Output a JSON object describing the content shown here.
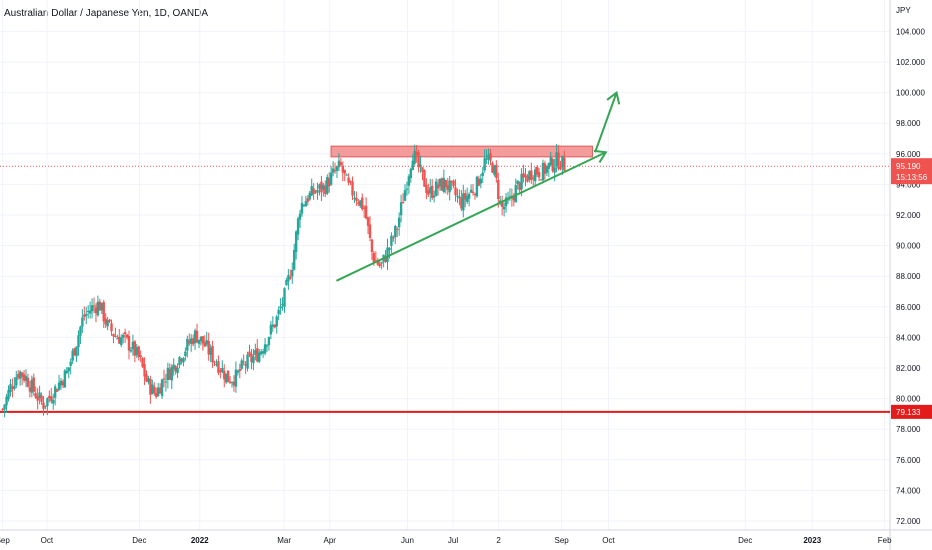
{
  "chart_data": {
    "type": "candlestick",
    "title": "Australian Dollar / Japanese Yen, 1D, OANDA",
    "currency_label": "JPY",
    "ylim": [
      72.0,
      106.0
    ],
    "y_ticks": [
      "72.000",
      "74.000",
      "76.000",
      "78.000",
      "80.000",
      "82.000",
      "84.000",
      "86.000",
      "88.000",
      "90.000",
      "92.000",
      "94.000",
      "96.000",
      "98.000",
      "100.000",
      "102.000",
      "104.000"
    ],
    "x_ticks": [
      "Sep",
      "Oct",
      "Dec",
      "2022",
      "Mar",
      "Apr",
      "Jun",
      "Jul",
      "2",
      "Sep",
      "Oct",
      "Dec",
      "2023",
      "Feb"
    ],
    "x_tick_days": [
      0,
      33,
      102,
      147,
      210,
      244,
      302,
      336,
      370,
      417,
      452,
      554,
      604,
      658
    ],
    "x_range_days": [
      -2,
      662
    ],
    "close_path": [
      [
        0,
        79.3
      ],
      [
        6,
        80.8
      ],
      [
        12,
        81.8
      ],
      [
        18,
        81.3
      ],
      [
        24,
        80.4
      ],
      [
        30,
        79.6
      ],
      [
        36,
        80.2
      ],
      [
        42,
        81.0
      ],
      [
        48,
        81.7
      ],
      [
        54,
        83.4
      ],
      [
        60,
        85.3
      ],
      [
        66,
        85.9
      ],
      [
        72,
        86.2
      ],
      [
        78,
        84.8
      ],
      [
        84,
        84.1
      ],
      [
        90,
        83.9
      ],
      [
        96,
        83.4
      ],
      [
        102,
        82.6
      ],
      [
        108,
        81.0
      ],
      [
        114,
        80.3
      ],
      [
        120,
        81.3
      ],
      [
        126,
        81.9
      ],
      [
        132,
        82.7
      ],
      [
        138,
        83.5
      ],
      [
        144,
        84.2
      ],
      [
        150,
        83.6
      ],
      [
        156,
        82.8
      ],
      [
        162,
        82.1
      ],
      [
        168,
        81.3
      ],
      [
        174,
        81.4
      ],
      [
        180,
        82.2
      ],
      [
        186,
        82.6
      ],
      [
        192,
        83.1
      ],
      [
        198,
        84.1
      ],
      [
        204,
        85.1
      ],
      [
        210,
        86.6
      ],
      [
        216,
        88.8
      ],
      [
        222,
        92.6
      ],
      [
        228,
        93.2
      ],
      [
        234,
        93.6
      ],
      [
        240,
        93.8
      ],
      [
        246,
        94.6
      ],
      [
        252,
        95.2
      ],
      [
        258,
        93.8
      ],
      [
        264,
        93.2
      ],
      [
        270,
        92.4
      ],
      [
        276,
        89.3
      ],
      [
        282,
        88.6
      ],
      [
        288,
        89.8
      ],
      [
        294,
        91.1
      ],
      [
        300,
        93.6
      ],
      [
        306,
        96.1
      ],
      [
        312,
        94.7
      ],
      [
        318,
        93.4
      ],
      [
        324,
        93.8
      ],
      [
        330,
        94.1
      ],
      [
        336,
        93.5
      ],
      [
        342,
        92.8
      ],
      [
        348,
        93.4
      ],
      [
        354,
        94.0
      ],
      [
        360,
        95.6
      ],
      [
        366,
        95.2
      ],
      [
        372,
        92.4
      ],
      [
        378,
        92.8
      ],
      [
        384,
        93.9
      ],
      [
        390,
        94.4
      ],
      [
        396,
        94.9
      ],
      [
        402,
        94.8
      ],
      [
        408,
        95.2
      ],
      [
        414,
        95.6
      ],
      [
        420,
        95.19
      ]
    ],
    "resistance_zone": {
      "from_day": 245,
      "to_day": 440,
      "low": 95.8,
      "high": 96.5
    },
    "support_line": {
      "x": [
        249,
        450
      ],
      "y": [
        87.7,
        96.1
      ]
    },
    "projection_arrow": {
      "x": [
        442,
        458
      ],
      "y": [
        96.1,
        100.0
      ]
    },
    "key_level": {
      "value": 79.133,
      "label": "79.133"
    },
    "last_price": {
      "value": 95.19,
      "label": "95.190",
      "countdown": "15:13:56"
    },
    "colors": {
      "up": "#26a69a",
      "down": "#ef5350",
      "key_level": "#e31b1b",
      "zone_fill": "#f28b8b",
      "zone_border": "#e05a5a",
      "trendline": "#35a653",
      "price_tag": "#ef5350",
      "grid": "#f0f3fa",
      "axis_text": "#131722"
    },
    "grid": true
  }
}
